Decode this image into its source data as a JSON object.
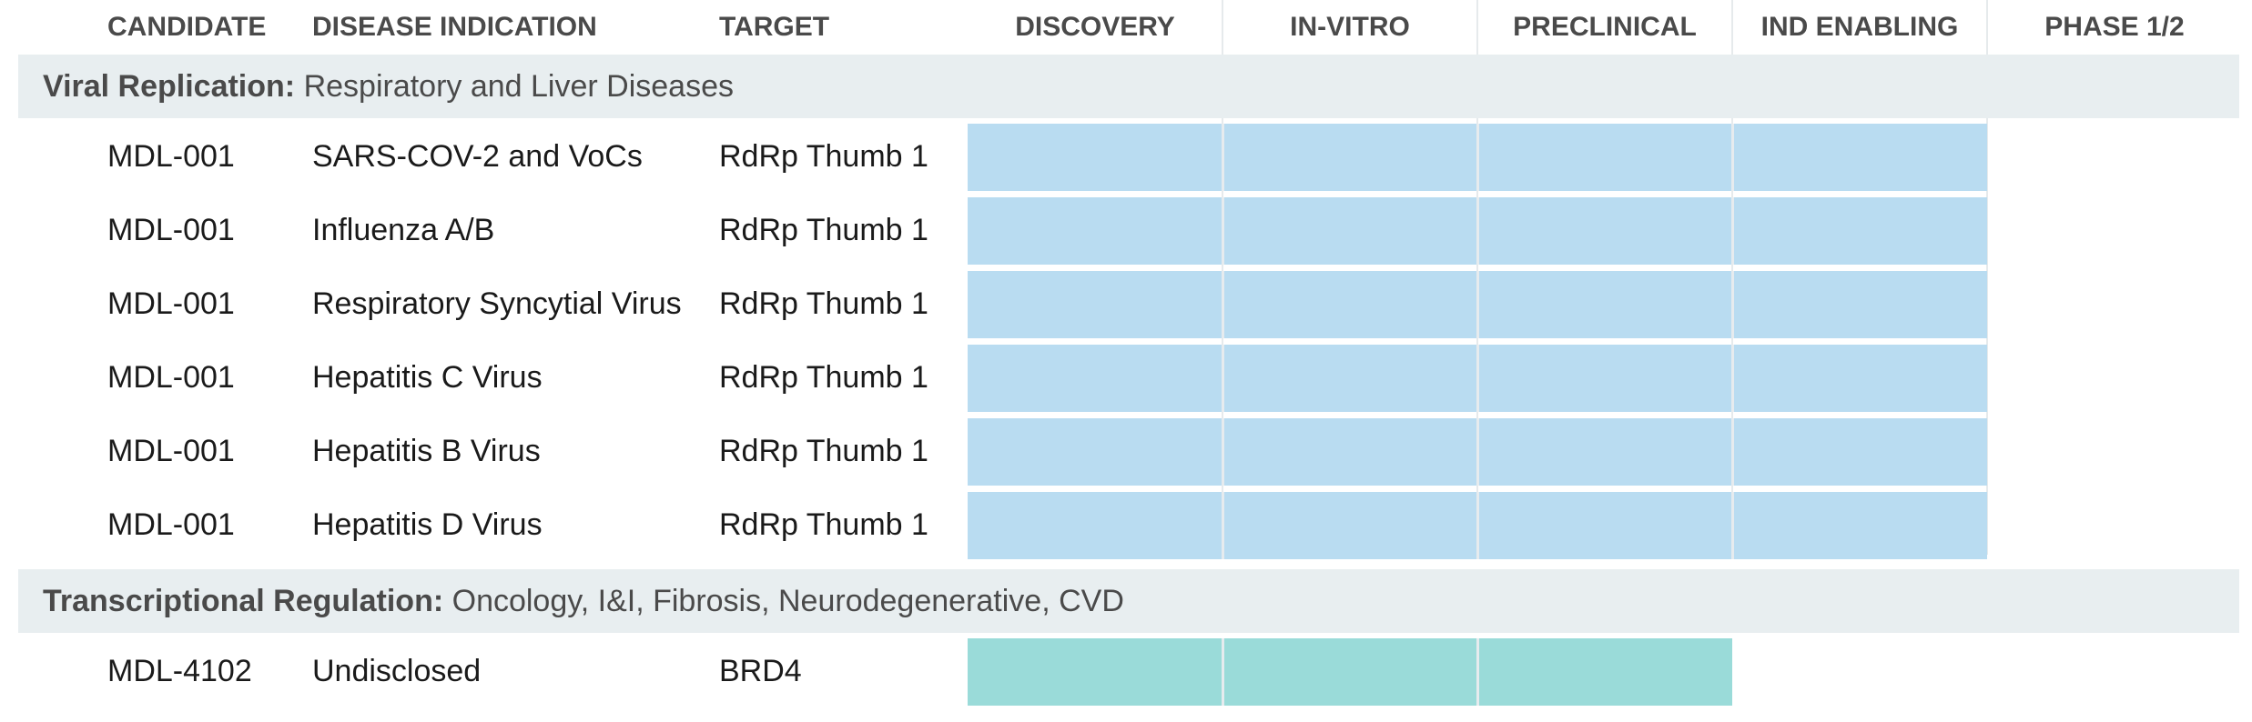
{
  "headers": {
    "candidate": "CANDIDATE",
    "indication": "DISEASE INDICATION",
    "target": "TARGET"
  },
  "chart_data": {
    "type": "bar",
    "stages": [
      "DISCOVERY",
      "IN-VITRO",
      "PRECLINICAL",
      "IND ENABLING",
      "PHASE 1/2"
    ],
    "groups": [
      {
        "name": "Viral Replication:",
        "subtitle": "Respiratory and Liver Diseases",
        "color": "#b9dcf1",
        "rows": [
          {
            "candidate": "MDL-001",
            "indication": "SARS-COV-2 and VoCs",
            "target": "RdRp Thumb 1",
            "stages_completed": 4
          },
          {
            "candidate": "MDL-001",
            "indication": "Influenza A/B",
            "target": "RdRp Thumb 1",
            "stages_completed": 4
          },
          {
            "candidate": "MDL-001",
            "indication": "Respiratory Syncytial Virus",
            "target": "RdRp Thumb 1",
            "stages_completed": 4
          },
          {
            "candidate": "MDL-001",
            "indication": "Hepatitis C Virus",
            "target": "RdRp Thumb 1",
            "stages_completed": 4
          },
          {
            "candidate": "MDL-001",
            "indication": "Hepatitis B Virus",
            "target": "RdRp Thumb 1",
            "stages_completed": 4
          },
          {
            "candidate": "MDL-001",
            "indication": "Hepatitis D Virus",
            "target": "RdRp Thumb 1",
            "stages_completed": 4
          }
        ]
      },
      {
        "name": "Transcriptional Regulation:",
        "subtitle": "Oncology, I&I, Fibrosis, Neurodegenerative, CVD",
        "color": "#9adbd9",
        "rows": [
          {
            "candidate": "MDL-4102",
            "indication": "Undisclosed",
            "target": "BRD4",
            "stages_completed": 3
          }
        ]
      }
    ]
  }
}
